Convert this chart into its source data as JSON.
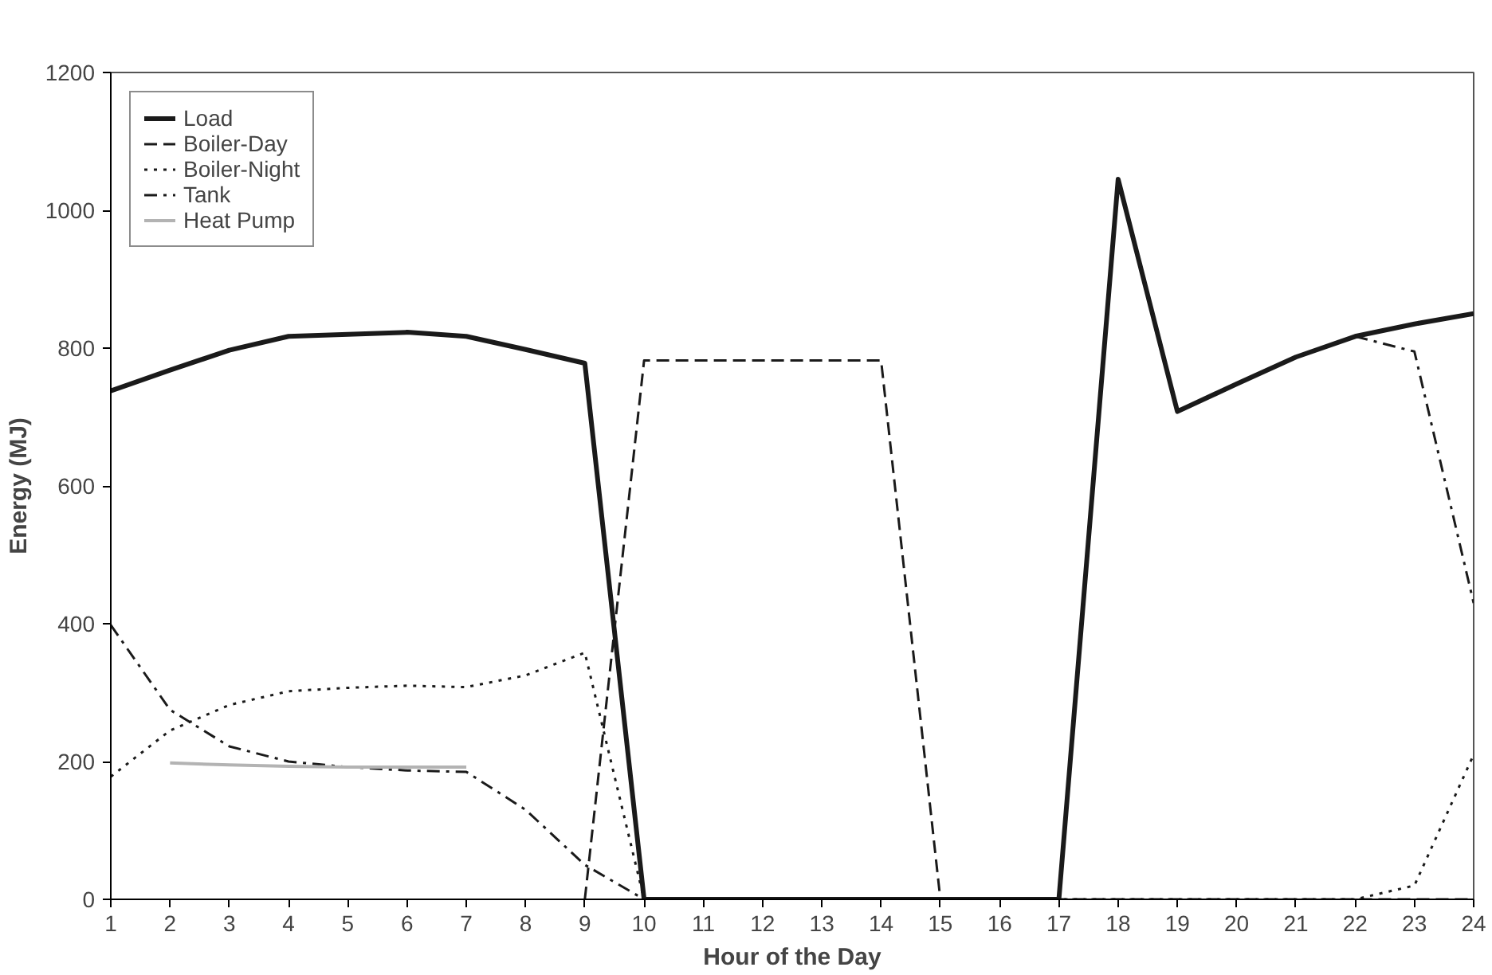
{
  "chart_data": {
    "type": "line",
    "xlabel": "Hour of the Day",
    "ylabel": "Energy (MJ)",
    "x": [
      1,
      2,
      3,
      4,
      5,
      6,
      7,
      8,
      9,
      10,
      11,
      12,
      13,
      14,
      15,
      16,
      17,
      18,
      19,
      20,
      21,
      22,
      23,
      24
    ],
    "xlim": [
      1,
      24
    ],
    "xticks": [
      1,
      2,
      3,
      4,
      5,
      6,
      7,
      8,
      9,
      10,
      11,
      12,
      13,
      14,
      15,
      16,
      17,
      18,
      19,
      20,
      21,
      22,
      23,
      24
    ],
    "ylim": [
      0,
      1200
    ],
    "yticks": [
      0,
      200,
      400,
      600,
      800,
      1000,
      1200
    ],
    "grid": false,
    "legend": "top left",
    "series": [
      {
        "name": "Load",
        "color": "#1a1a1a",
        "line_style": "solid",
        "values": [
          738,
          768,
          797,
          817,
          820,
          823,
          817,
          798,
          778,
          0,
          0,
          0,
          0,
          0,
          0,
          0,
          0,
          1045,
          708,
          748,
          787,
          817,
          835,
          850
        ]
      },
      {
        "name": "Boiler-Day",
        "color": "#1a1a1a",
        "line_style": "dashed",
        "values": [
          null,
          null,
          null,
          null,
          null,
          null,
          null,
          null,
          0,
          782,
          782,
          782,
          782,
          782,
          0,
          0,
          0,
          0,
          0,
          0,
          0,
          0,
          0,
          0
        ]
      },
      {
        "name": "Boiler-Night",
        "color": "#1a1a1a",
        "line_style": "dotted",
        "values": [
          178,
          245,
          282,
          302,
          307,
          310,
          308,
          325,
          358,
          0,
          0,
          0,
          0,
          0,
          0,
          0,
          0,
          0,
          0,
          0,
          0,
          0,
          20,
          210
        ]
      },
      {
        "name": "Tank",
        "color": "#1a1a1a",
        "line_style": "dashdot",
        "values": [
          398,
          275,
          222,
          200,
          192,
          187,
          185,
          130,
          50,
          0,
          0,
          0,
          0,
          0,
          0,
          0,
          0,
          null,
          null,
          null,
          null,
          817,
          795,
          430
        ]
      },
      {
        "name": "Heat Pump",
        "color": "#b3b3b3",
        "line_style": "solid",
        "values": [
          null,
          198,
          195,
          193,
          192,
          192,
          192,
          null,
          null,
          null,
          null,
          null,
          null,
          null,
          null,
          null,
          null,
          null,
          null,
          null,
          null,
          null,
          null,
          null
        ]
      }
    ]
  }
}
